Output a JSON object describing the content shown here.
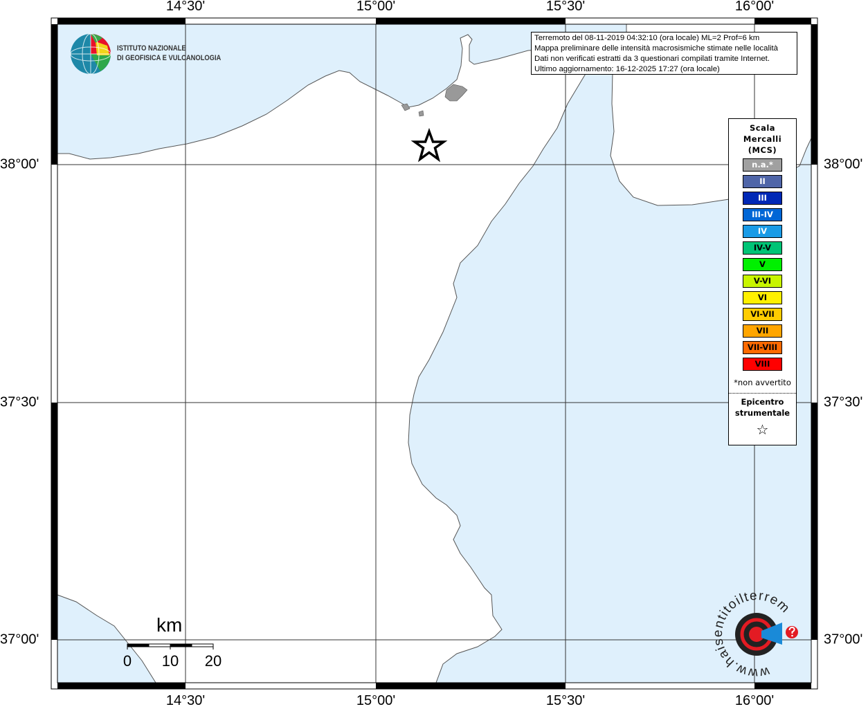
{
  "map": {
    "lon_labels": [
      "14°30'",
      "15°00'",
      "15°30'",
      "16°00'"
    ],
    "lat_labels": [
      "38°00'",
      "37°30'",
      "37°00'"
    ],
    "colors": {
      "sea": "#dff0fc",
      "land": "#ffffff",
      "urban": "#999999",
      "grid": "#333333"
    },
    "epicenter_icon": "star-outline-icon"
  },
  "info": {
    "line1": "Terremoto del 08-11-2019 04:32:10 (ora locale) ML=2 Prof=6 km",
    "line2": "Mappa preliminare delle intensità macrosismiche stimate nelle località",
    "line3": "Dati non verificati estratti da 3 questionari compilati tramite Internet.",
    "line4": "Ultimo aggiornamento: 16-12-2025 17:27 (ora locale)"
  },
  "logo_ingv": {
    "line1": "ISTITUTO NAZIONALE",
    "line2": "DI GEOFISICA E VULCANOLOGIA"
  },
  "logo_hsit": {
    "text": "www.haisentitoilterremoto.it"
  },
  "legend": {
    "title1": "Scala",
    "title2": "Mercalli",
    "title3": "(MCS)",
    "items": [
      {
        "label": "n.a.*",
        "color": "#a0a0a0",
        "text": "#ffffff"
      },
      {
        "label": "II",
        "color": "#4f65a8",
        "text": "#ffffff"
      },
      {
        "label": "III",
        "color": "#0028b6",
        "text": "#ffffff"
      },
      {
        "label": "III-IV",
        "color": "#0066d6",
        "text": "#ffffff"
      },
      {
        "label": "IV",
        "color": "#1a9be6",
        "text": "#ffffff"
      },
      {
        "label": "IV-V",
        "color": "#00c476",
        "text": "#000000"
      },
      {
        "label": "V",
        "color": "#00f000",
        "text": "#000000"
      },
      {
        "label": "V-VI",
        "color": "#c8f500",
        "text": "#000000"
      },
      {
        "label": "VI",
        "color": "#fff000",
        "text": "#000000"
      },
      {
        "label": "VI-VII",
        "color": "#ffcc00",
        "text": "#000000"
      },
      {
        "label": "VII",
        "color": "#ffa500",
        "text": "#000000"
      },
      {
        "label": "VII-VIII",
        "color": "#ff6a00",
        "text": "#000000"
      },
      {
        "label": "VIII",
        "color": "#ff0000",
        "text": "#000000"
      }
    ],
    "note": "*non avvertito",
    "epi1": "Epicentro",
    "epi2": "strumentale",
    "star": "☆"
  },
  "scale_bar": {
    "unit": "km",
    "ticks": [
      "0",
      "10",
      "20"
    ]
  }
}
